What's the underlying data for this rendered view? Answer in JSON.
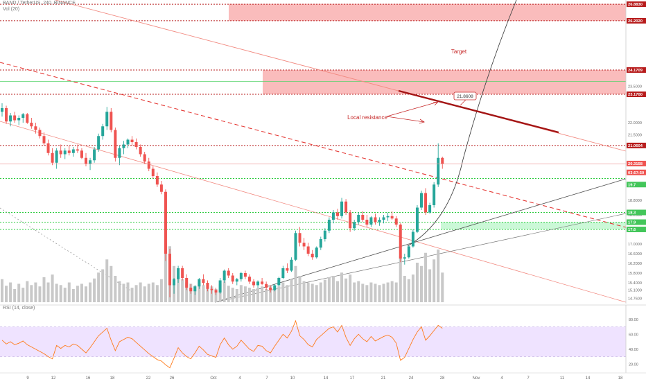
{
  "header": {
    "symbol_line": "BAND / TetherUS, 240, BINANCE",
    "volume_line": "Vol (20)",
    "rsi_line": "RSI (14, close)"
  },
  "annotations": {
    "target": "Target",
    "local_resistance": "Local resistance",
    "callout_value": "21.8608"
  },
  "colors": {
    "candle_up": "#26a69a",
    "candle_down": "#ef5350",
    "level_red": "#b71c1c",
    "level_green": "#2ecc40",
    "zone_red": "#f8a5a5",
    "zone_green": "#b9f6ca",
    "rsi_line": "#ff7a1a",
    "rsi_band": "#efe3ff",
    "volume": "#c8c8c8"
  },
  "price_axis": {
    "ticks": [
      "23.5000",
      "22.0000",
      "21.5000",
      "20.0000",
      "19.4000",
      "18.8000",
      "18.2000",
      "17.6000",
      "17.0000",
      "16.6000",
      "16.2000",
      "15.8000",
      "15.4000",
      "15.1000",
      "14.7600"
    ],
    "price_labels": [
      {
        "text": "26.8830",
        "kind": "red"
      },
      {
        "text": "26.2020",
        "kind": "red"
      },
      {
        "text": "24.1709",
        "kind": "red"
      },
      {
        "text": "23.1700",
        "kind": "red"
      },
      {
        "text": "21.0604",
        "kind": "red"
      },
      {
        "text": "20.3158",
        "kind": "current"
      },
      {
        "text": "03:57:50",
        "kind": "current"
      },
      {
        "text": "19.7",
        "kind": "green"
      },
      {
        "text": "18.3",
        "kind": "green"
      },
      {
        "text": "17.9",
        "kind": "green"
      },
      {
        "text": "17.6",
        "kind": "green"
      }
    ]
  },
  "rsi_axis": {
    "ticks": [
      "80.00",
      "60.00",
      "40.00",
      "20.00"
    ]
  },
  "time_axis": {
    "ticks": [
      "9",
      "12",
      "16",
      "18",
      "22",
      "26",
      "Oct",
      "4",
      "7",
      "10",
      "14",
      "17",
      "21",
      "24",
      "28",
      "Nov",
      "4",
      "7",
      "11",
      "14",
      "18"
    ]
  },
  "chart_data": {
    "type": "candlestick",
    "symbol": "BAND / TetherUS",
    "interval": "240",
    "exchange": "BINANCE",
    "y_range": [
      14.6,
      27.0
    ],
    "rsi_range": [
      10,
      90
    ],
    "horizontal_levels": [
      {
        "price": 26.883,
        "style": "dotted",
        "color": "red"
      },
      {
        "price": 26.202,
        "style": "dotted",
        "color": "red"
      },
      {
        "price": 24.1709,
        "style": "dotted",
        "color": "red"
      },
      {
        "price": 23.17,
        "style": "dotted",
        "color": "red"
      },
      {
        "price": 21.0604,
        "style": "dotted",
        "color": "red"
      },
      {
        "price": 19.7,
        "style": "dotted",
        "color": "green"
      },
      {
        "price": 18.3,
        "style": "dotted",
        "color": "green"
      },
      {
        "price": 17.9,
        "style": "dotted",
        "color": "green"
      },
      {
        "price": 17.6,
        "style": "dotted",
        "color": "green"
      }
    ],
    "zones": [
      {
        "name": "upper-sell-zone",
        "from": 26.2,
        "to": 26.9
      },
      {
        "name": "target-zone",
        "from": 23.17,
        "to": 24.17
      },
      {
        "name": "support-zone",
        "from": 17.6,
        "to": 17.9
      }
    ],
    "candles": [
      [
        22.45,
        22.8,
        22.25,
        22.6
      ],
      [
        22.6,
        22.7,
        21.95,
        22.05
      ],
      [
        22.05,
        22.4,
        21.85,
        22.3
      ],
      [
        22.3,
        22.45,
        22.0,
        22.1
      ],
      [
        22.1,
        22.3,
        21.9,
        22.2
      ],
      [
        22.2,
        22.4,
        22.0,
        22.35
      ],
      [
        22.35,
        22.4,
        21.95,
        22.0
      ],
      [
        22.0,
        22.2,
        21.75,
        21.85
      ],
      [
        21.85,
        22.0,
        21.55,
        21.7
      ],
      [
        21.7,
        21.8,
        21.35,
        21.45
      ],
      [
        21.45,
        21.6,
        21.05,
        21.15
      ],
      [
        21.15,
        21.3,
        20.65,
        20.75
      ],
      [
        20.75,
        20.95,
        20.25,
        20.35
      ],
      [
        20.35,
        20.95,
        20.1,
        20.85
      ],
      [
        20.85,
        21.1,
        20.55,
        20.7
      ],
      [
        20.7,
        20.95,
        20.5,
        20.85
      ],
      [
        20.85,
        21.05,
        20.65,
        20.75
      ],
      [
        20.75,
        21.0,
        20.6,
        20.9
      ],
      [
        20.9,
        21.1,
        20.75,
        20.85
      ],
      [
        20.85,
        20.95,
        20.5,
        20.55
      ],
      [
        20.55,
        20.75,
        20.2,
        20.3
      ],
      [
        20.3,
        20.55,
        20.05,
        20.45
      ],
      [
        20.45,
        21.0,
        20.35,
        20.9
      ],
      [
        20.9,
        21.55,
        20.8,
        21.45
      ],
      [
        21.45,
        21.95,
        21.3,
        21.85
      ],
      [
        21.85,
        22.65,
        21.7,
        22.45
      ],
      [
        22.45,
        22.6,
        21.6,
        21.7
      ],
      [
        21.7,
        21.8,
        20.4,
        20.55
      ],
      [
        20.55,
        21.05,
        20.25,
        20.95
      ],
      [
        20.95,
        21.25,
        20.7,
        21.1
      ],
      [
        21.1,
        21.35,
        20.95,
        21.3
      ],
      [
        21.3,
        21.45,
        21.05,
        21.2
      ],
      [
        21.2,
        21.35,
        20.9,
        21.0
      ],
      [
        21.0,
        21.1,
        20.6,
        20.7
      ],
      [
        20.7,
        20.8,
        20.3,
        20.4
      ],
      [
        20.4,
        20.55,
        20.0,
        20.1
      ],
      [
        20.1,
        20.2,
        19.7,
        19.8
      ],
      [
        19.8,
        19.95,
        19.35,
        19.45
      ],
      [
        19.45,
        19.6,
        19.05,
        19.15
      ],
      [
        19.15,
        19.25,
        16.3,
        16.6
      ],
      [
        16.6,
        16.8,
        14.8,
        15.3
      ],
      [
        15.3,
        15.6,
        14.95,
        15.55
      ],
      [
        15.55,
        16.1,
        15.4,
        16.0
      ],
      [
        16.0,
        16.1,
        15.5,
        15.6
      ],
      [
        15.6,
        15.75,
        15.1,
        15.2
      ],
      [
        15.2,
        15.35,
        14.95,
        15.05
      ],
      [
        15.05,
        15.3,
        14.9,
        15.25
      ],
      [
        15.25,
        15.6,
        15.15,
        15.55
      ],
      [
        15.55,
        15.75,
        15.3,
        15.4
      ],
      [
        15.4,
        15.5,
        15.05,
        15.15
      ],
      [
        15.15,
        15.3,
        14.95,
        15.1
      ],
      [
        15.1,
        15.2,
        14.9,
        15.0
      ],
      [
        15.0,
        15.6,
        14.95,
        15.5
      ],
      [
        15.5,
        15.95,
        15.4,
        15.9
      ],
      [
        15.9,
        16.0,
        15.6,
        15.7
      ],
      [
        15.7,
        15.8,
        15.35,
        15.45
      ],
      [
        15.45,
        15.6,
        15.3,
        15.55
      ],
      [
        15.55,
        15.85,
        15.45,
        15.8
      ],
      [
        15.8,
        15.9,
        15.55,
        15.65
      ],
      [
        15.65,
        15.75,
        15.35,
        15.45
      ],
      [
        15.45,
        15.55,
        15.2,
        15.3
      ],
      [
        15.3,
        15.5,
        15.2,
        15.45
      ],
      [
        15.45,
        15.6,
        15.3,
        15.35
      ],
      [
        15.35,
        15.45,
        15.1,
        15.2
      ],
      [
        15.2,
        15.3,
        15.0,
        15.1
      ],
      [
        15.1,
        15.35,
        15.05,
        15.3
      ],
      [
        15.3,
        15.65,
        15.25,
        15.6
      ],
      [
        15.6,
        16.1,
        15.55,
        16.0
      ],
      [
        16.0,
        16.2,
        15.8,
        15.9
      ],
      [
        15.9,
        16.45,
        15.85,
        16.35
      ],
      [
        16.35,
        17.55,
        16.3,
        17.45
      ],
      [
        17.45,
        17.7,
        16.9,
        17.05
      ],
      [
        17.05,
        17.25,
        16.75,
        16.9
      ],
      [
        16.9,
        17.05,
        16.5,
        16.6
      ],
      [
        16.6,
        16.75,
        16.35,
        16.45
      ],
      [
        16.45,
        16.9,
        16.4,
        16.85
      ],
      [
        16.85,
        17.3,
        16.75,
        17.2
      ],
      [
        17.2,
        17.65,
        17.1,
        17.55
      ],
      [
        17.55,
        18.1,
        17.45,
        18.0
      ],
      [
        18.0,
        18.4,
        17.85,
        18.3
      ],
      [
        18.3,
        18.45,
        18.0,
        18.15
      ],
      [
        18.15,
        18.9,
        18.05,
        18.75
      ],
      [
        18.75,
        18.85,
        18.2,
        18.3
      ],
      [
        18.3,
        18.4,
        17.5,
        17.65
      ],
      [
        17.65,
        18.0,
        17.55,
        17.9
      ],
      [
        17.9,
        18.3,
        17.8,
        18.2
      ],
      [
        18.2,
        18.35,
        17.9,
        18.0
      ],
      [
        18.0,
        18.2,
        17.7,
        17.8
      ],
      [
        17.8,
        18.15,
        17.7,
        18.1
      ],
      [
        18.1,
        18.25,
        17.8,
        17.9
      ],
      [
        17.9,
        18.1,
        17.75,
        18.0
      ],
      [
        18.0,
        18.2,
        17.85,
        18.1
      ],
      [
        18.1,
        18.3,
        17.95,
        18.15
      ],
      [
        18.15,
        18.35,
        18.0,
        18.05
      ],
      [
        18.05,
        18.15,
        17.7,
        17.8
      ],
      [
        17.8,
        17.85,
        16.25,
        16.4
      ],
      [
        16.4,
        16.6,
        16.15,
        16.45
      ],
      [
        16.45,
        16.95,
        16.4,
        16.9
      ],
      [
        16.9,
        17.6,
        16.85,
        17.5
      ],
      [
        17.5,
        18.6,
        17.45,
        18.5
      ],
      [
        18.5,
        19.2,
        18.4,
        19.1
      ],
      [
        19.1,
        19.3,
        18.2,
        18.3
      ],
      [
        18.3,
        18.7,
        18.25,
        18.6
      ],
      [
        18.6,
        19.55,
        18.5,
        19.45
      ],
      [
        19.45,
        21.15,
        19.35,
        20.55
      ],
      [
        20.55,
        20.6,
        20.1,
        20.3
      ]
    ],
    "volume": [
      0.35,
      0.25,
      0.3,
      0.2,
      0.28,
      0.22,
      0.32,
      0.26,
      0.3,
      0.24,
      0.38,
      0.3,
      0.42,
      0.28,
      0.26,
      0.22,
      0.3,
      0.2,
      0.25,
      0.28,
      0.24,
      0.3,
      0.36,
      0.45,
      0.5,
      0.65,
      0.55,
      0.4,
      0.32,
      0.28,
      0.3,
      0.22,
      0.26,
      0.3,
      0.24,
      0.28,
      0.3,
      0.26,
      0.35,
      0.9,
      0.85,
      0.55,
      0.4,
      0.35,
      0.3,
      0.28,
      0.25,
      0.3,
      0.26,
      0.22,
      0.24,
      0.2,
      0.28,
      0.32,
      0.25,
      0.22,
      0.2,
      0.26,
      0.24,
      0.22,
      0.2,
      0.22,
      0.24,
      0.2,
      0.26,
      0.22,
      0.24,
      0.3,
      0.26,
      0.35,
      0.55,
      0.4,
      0.32,
      0.3,
      0.28,
      0.26,
      0.3,
      0.34,
      0.38,
      0.4,
      0.32,
      0.45,
      0.36,
      0.42,
      0.3,
      0.32,
      0.28,
      0.26,
      0.3,
      0.28,
      0.26,
      0.28,
      0.3,
      0.32,
      0.3,
      0.7,
      0.4,
      0.35,
      0.42,
      0.6,
      0.55,
      0.75,
      0.5,
      0.65,
      0.8,
      0.45
    ],
    "rsi": [
      52,
      47,
      50,
      46,
      48,
      51,
      46,
      43,
      40,
      37,
      34,
      30,
      27,
      45,
      41,
      45,
      43,
      47,
      45,
      40,
      35,
      42,
      50,
      58,
      63,
      68,
      52,
      38,
      50,
      53,
      56,
      54,
      49,
      44,
      39,
      34,
      30,
      26,
      24,
      19,
      15,
      28,
      42,
      35,
      30,
      27,
      35,
      44,
      39,
      33,
      31,
      29,
      46,
      55,
      46,
      40,
      44,
      52,
      46,
      40,
      37,
      45,
      44,
      38,
      35,
      44,
      52,
      60,
      55,
      64,
      78,
      58,
      53,
      46,
      43,
      53,
      58,
      63,
      68,
      70,
      63,
      72,
      56,
      45,
      54,
      60,
      54,
      50,
      57,
      51,
      54,
      57,
      59,
      56,
      48,
      25,
      29,
      41,
      53,
      63,
      70,
      52,
      58,
      65,
      72,
      68
    ]
  }
}
